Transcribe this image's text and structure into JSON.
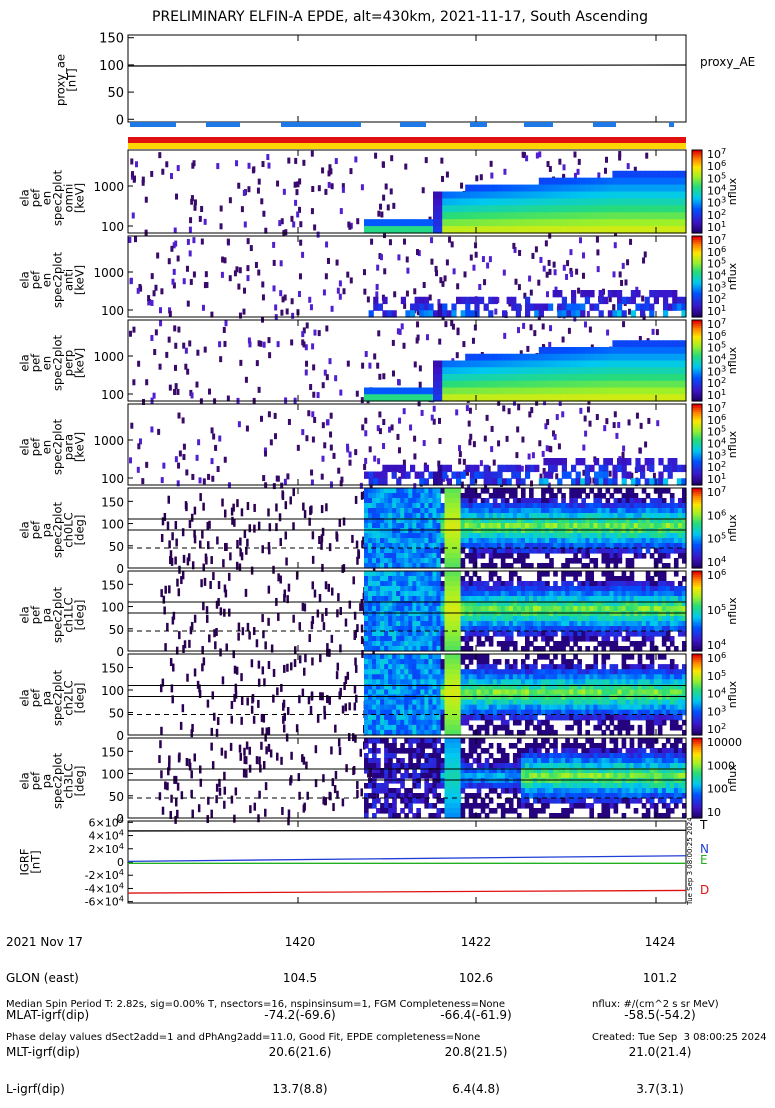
{
  "title": "PRELIMINARY ELFIN-A EPDE, alt=430km, 2021-11-17, South Ascending",
  "colors": {
    "plot_bg": "#ffffff",
    "axis": "#000000",
    "proxy_line": "#000000",
    "seg_blue": "#1e78e6",
    "bar_red": "#e01010",
    "bar_yellow": "#ffd400",
    "igrf_T": "#000000",
    "igrf_N": "#1f3fd6",
    "igrf_E": "#22b022",
    "igrf_D": "#e01010"
  },
  "chart_data": {
    "type": "heatmap",
    "x_time_range": [
      "14:18:17",
      "14:24:27"
    ],
    "x_ticks": [
      "1420",
      "1422",
      "1424"
    ],
    "proxy_panel": {
      "ylabel": [
        "proxy_ae",
        "[nT]"
      ],
      "yticks": [
        0,
        50,
        100,
        150
      ],
      "ylim": [
        -5,
        155
      ],
      "series_label": "proxy_AE",
      "value": 98
    },
    "energy_panels": [
      {
        "ylabel": [
          "ela",
          "pef",
          "en",
          "spec2plot",
          "omni",
          "[keV]"
        ],
        "yticks": [
          "100",
          "1000"
        ],
        "cbar_ticks": [
          "10^7",
          "10^6",
          "10^5",
          "10^4",
          "10^3",
          "10^2",
          "10^1"
        ],
        "cbar_label": "nflux"
      },
      {
        "ylabel": [
          "ela",
          "pef",
          "en",
          "spec2plot",
          "anti",
          "[keV]"
        ],
        "yticks": [
          "100",
          "1000"
        ],
        "cbar_ticks": [
          "10^7",
          "10^6",
          "10^5",
          "10^4",
          "10^3",
          "10^2",
          "10^1"
        ],
        "cbar_label": "nflux"
      },
      {
        "ylabel": [
          "ela",
          "pef",
          "en",
          "spec2plot",
          "perp",
          "[keV]"
        ],
        "yticks": [
          "100",
          "1000"
        ],
        "cbar_ticks": [
          "10^7",
          "10^6",
          "10^5",
          "10^4",
          "10^3",
          "10^2",
          "10^1"
        ],
        "cbar_label": "nflux"
      },
      {
        "ylabel": [
          "ela",
          "pef",
          "en",
          "spec2plot",
          "para",
          "[keV]"
        ],
        "yticks": [
          "100",
          "1000"
        ],
        "cbar_ticks": [
          "10^7",
          "10^6",
          "10^5",
          "10^4",
          "10^3",
          "10^2",
          "10^1"
        ],
        "cbar_label": "nflux"
      }
    ],
    "pitch_panels": [
      {
        "ylabel": [
          "ela",
          "pef",
          "pa",
          "spec2plot",
          "ch0LC",
          "[deg]"
        ],
        "yticks": [
          "0",
          "50",
          "100",
          "150"
        ],
        "cbar_ticks": [
          "10^7",
          "10^6",
          "10^5",
          "10^4"
        ],
        "cbar_label": "nflux"
      },
      {
        "ylabel": [
          "ela",
          "pef",
          "pa",
          "spec2plot",
          "ch1LC",
          "[deg]"
        ],
        "yticks": [
          "0",
          "50",
          "100",
          "150"
        ],
        "cbar_ticks": [
          "10^6",
          "10^5",
          "10^4"
        ],
        "cbar_label": "nflux"
      },
      {
        "ylabel": [
          "ela",
          "pef",
          "pa",
          "spec2plot",
          "ch2LC",
          "[deg]"
        ],
        "yticks": [
          "0",
          "50",
          "100",
          "150"
        ],
        "cbar_ticks": [
          "10^6",
          "10^5",
          "10^4",
          "10^3",
          "10^2"
        ],
        "cbar_label": "nflux"
      },
      {
        "ylabel": [
          "ela",
          "pef",
          "pa",
          "spec2plot",
          "ch3LC",
          "[deg]"
        ],
        "yticks": [
          "0",
          "50",
          "100",
          "150"
        ],
        "cbar_ticks": [
          "10000",
          "1000",
          "100",
          "10"
        ],
        "cbar_label": "nflux"
      }
    ],
    "igrf_panel": {
      "ylabel": [
        "IGRF",
        "[nT]"
      ],
      "yticks": [
        "-6×10^4",
        "-4×10^4",
        "-2×10^4",
        "0",
        "2×10^4",
        "4×10^4",
        "6×10^4"
      ],
      "ylim": [
        -62000,
        62000
      ],
      "series": [
        {
          "name": "T",
          "start": 47000,
          "end": 48000
        },
        {
          "name": "N",
          "start": 1000,
          "end": 9500
        },
        {
          "name": "E",
          "start": -2000,
          "end": -2000
        },
        {
          "name": "D",
          "start": -47000,
          "end": -43000
        }
      ],
      "side_text": "Tue Sep  3 08:00:25 2024"
    }
  },
  "footer": {
    "labels": [
      "2021 Nov 17",
      "GLON (east)",
      "MLAT-igrf(dip)",
      "MLT-igrf(dip)",
      "L-igrf(dip)"
    ],
    "columns": [
      [
        "1420",
        "104.5",
        "-74.2(-69.6)",
        "20.6(21.6)",
        "13.7(8.8)"
      ],
      [
        "1422",
        "102.6",
        "-66.4(-61.9)",
        "20.8(21.5)",
        "6.4(4.8)"
      ],
      [
        "1424",
        "101.2",
        "-58.5(-54.2)",
        "21.0(21.4)",
        "3.7(3.1)"
      ]
    ],
    "line1": "Median Spin Period T: 2.82s, sig=0.00% T, nsectors=16, nspinsinsum=1, FGM Completeness=None",
    "line2": "Phase delay values dSect2add=1 and dPhAng2add=11.0, Good Fit, EPDE completeness=None",
    "units": "nflux: #/(cm^2 s sr MeV)",
    "created": "Created: Tue Sep  3 08:00:25 2024"
  }
}
